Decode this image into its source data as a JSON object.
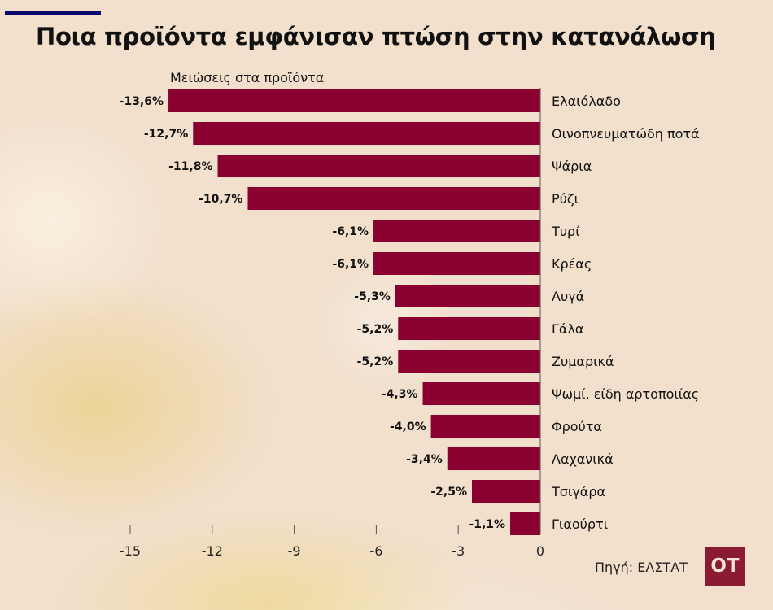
{
  "chart_data": {
    "type": "bar",
    "orientation": "horizontal",
    "title": "Ποια προϊόντα εμφάνισαν πτώση στην κατανάλωση",
    "subtitle": "Μειώσεις στα προϊόντα",
    "categories": [
      "Ελαιόλαδο",
      "Οινοπνευματώδη ποτά",
      "Ψάρια",
      "Ρύζι",
      "Τυρί",
      "Κρέας",
      "Αυγά",
      "Γάλα",
      "Ζυμαρικά",
      "Ψωμί, είδη αρτοποιίας",
      "Φρούτα",
      "Λαχανικά",
      "Τσιγάρα",
      "Γιαούρτι"
    ],
    "values": [
      -13.6,
      -12.7,
      -11.8,
      -10.7,
      -6.1,
      -6.1,
      -5.3,
      -5.2,
      -5.2,
      -4.3,
      -4.0,
      -3.4,
      -2.5,
      -1.1
    ],
    "value_labels": [
      "-13,6%",
      "-12,7%",
      "-11,8%",
      "-10,7%",
      "-6,1%",
      "-6,1%",
      "-5,3%",
      "-5,2%",
      "-5,2%",
      "-4,3%",
      "-4,0%",
      "-3,4%",
      "-2,5%",
      "-1,1%"
    ],
    "xlim": [
      -15,
      0
    ],
    "xticks": [
      -15,
      -12,
      -9,
      -6,
      -3,
      0
    ],
    "grid": false,
    "bar_color": "#8a0030"
  },
  "source": "Πηγή: ΕΛΣΤΑΤ",
  "logo": "OT"
}
